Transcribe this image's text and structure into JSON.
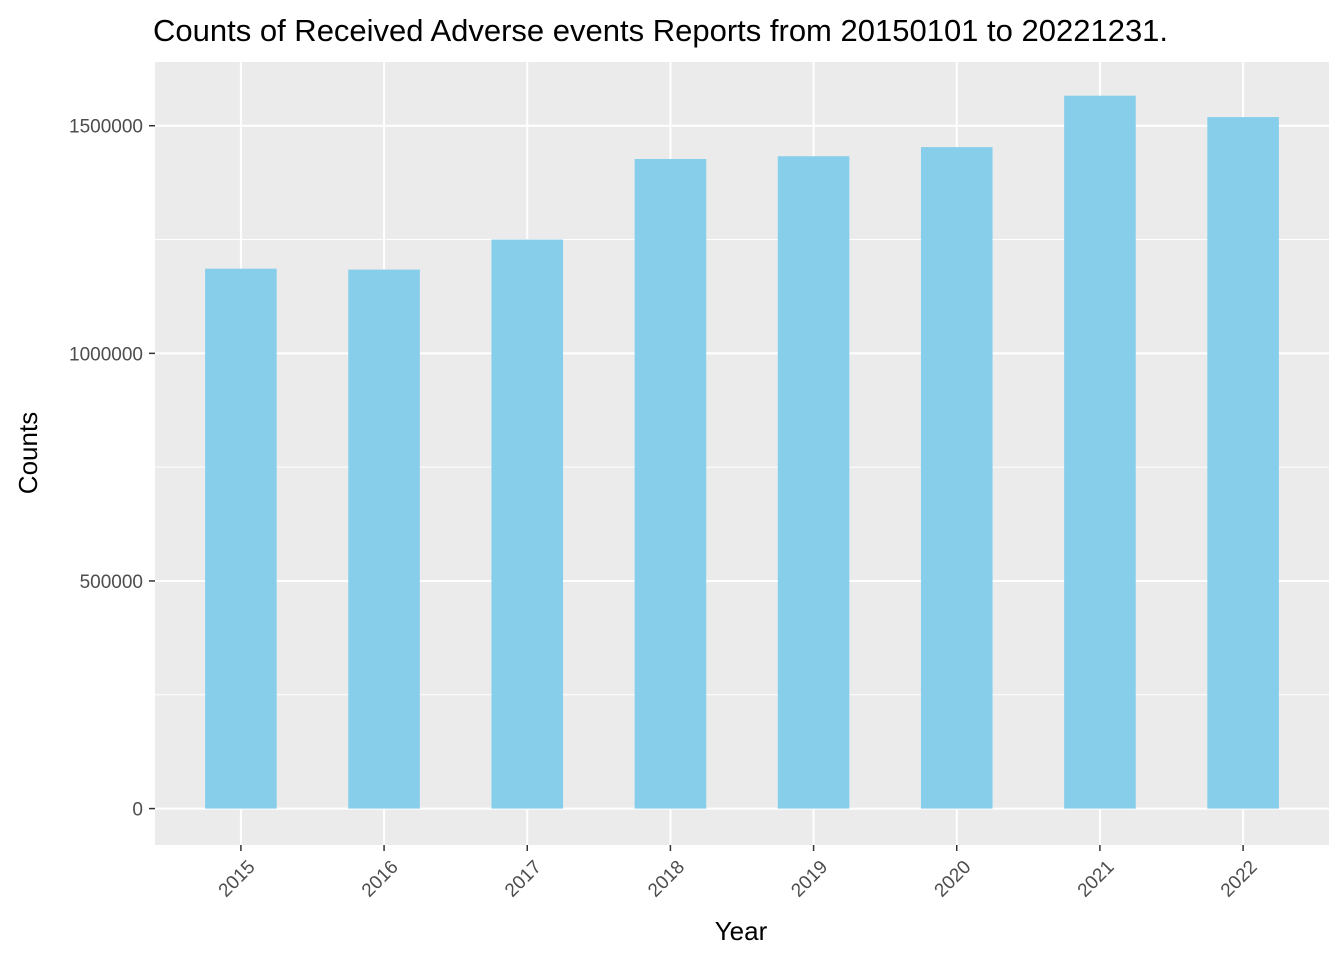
{
  "chart_data": {
    "type": "bar",
    "title": "Counts of Received Adverse events Reports from 20150101 to 20221231.",
    "xlabel": "Year",
    "ylabel": "Counts",
    "categories": [
      "2015",
      "2016",
      "2017",
      "2018",
      "2019",
      "2020",
      "2021",
      "2022"
    ],
    "values": [
      1186000,
      1184000,
      1250000,
      1427000,
      1433000,
      1453000,
      1566000,
      1519000
    ],
    "yticks": [
      0,
      500000,
      1000000,
      1500000
    ],
    "ytick_labels": [
      "0",
      "500000",
      "1000000",
      "1500000"
    ],
    "ylim": [
      -80000,
      1640000
    ],
    "grid": true,
    "bar_color": "#87CEEB",
    "panel_color": "#EBEBEB",
    "grid_color": "#FFFFFF",
    "x_tick_rotation": -45
  }
}
